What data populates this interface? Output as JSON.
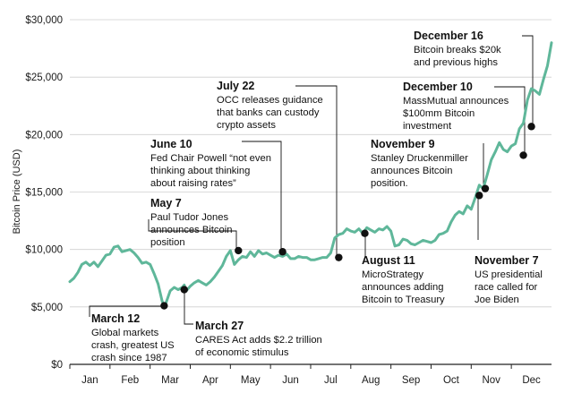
{
  "chart_data": {
    "type": "line",
    "title": "",
    "xlabel": "",
    "ylabel": "Bitcoin Price (USD)",
    "ylim": [
      0,
      30000
    ],
    "yticks": [
      "$0",
      "$5,000",
      "$10,000",
      "$15,000",
      "$20,000",
      "$25,000",
      "$30,000"
    ],
    "ytick_values": [
      0,
      5000,
      10000,
      15000,
      20000,
      25000,
      30000
    ],
    "xticks": [
      "Jan",
      "Feb",
      "Mar",
      "Apr",
      "May",
      "Jun",
      "Jul",
      "Aug",
      "Sep",
      "Oct",
      "Nov",
      "Dec"
    ],
    "grid": "horizontal",
    "line_color": "#5fb79a",
    "series": [
      {
        "values_x_month": [
          0.0,
          0.1,
          0.2,
          0.3,
          0.4,
          0.5,
          0.6,
          0.7,
          0.8,
          0.9,
          1.0,
          1.1,
          1.2,
          1.3,
          1.4,
          1.5,
          1.6,
          1.7,
          1.8,
          1.9,
          2.0,
          2.1,
          2.2,
          2.3,
          2.35,
          2.4,
          2.5,
          2.6,
          2.7,
          2.8,
          2.85,
          2.9,
          3.0,
          3.1,
          3.2,
          3.3,
          3.4,
          3.5,
          3.6,
          3.7,
          3.8,
          3.9,
          4.0,
          4.1,
          4.2,
          4.3,
          4.4,
          4.5,
          4.6,
          4.7,
          4.8,
          4.9,
          5.0,
          5.1,
          5.2,
          5.3,
          5.4,
          5.5,
          5.6,
          5.7,
          5.8,
          5.9,
          6.0,
          6.1,
          6.2,
          6.3,
          6.4,
          6.5,
          6.6,
          6.7,
          6.8,
          6.9,
          7.0,
          7.1,
          7.2,
          7.3,
          7.4,
          7.5,
          7.6,
          7.7,
          7.8,
          7.9,
          8.0,
          8.1,
          8.2,
          8.3,
          8.4,
          8.5,
          8.6,
          8.7,
          8.8,
          8.9,
          9.0,
          9.1,
          9.2,
          9.3,
          9.4,
          9.5,
          9.6,
          9.7,
          9.8,
          9.9,
          10.0,
          10.1,
          10.2,
          10.3,
          10.4,
          10.5,
          10.6,
          10.7,
          10.8,
          10.9,
          11.0,
          11.1,
          11.2,
          11.3,
          11.4,
          11.5,
          11.6,
          11.7,
          11.8,
          11.9,
          12.0
        ],
        "values_y": [
          7200,
          7500,
          8000,
          8700,
          8900,
          8600,
          8900,
          8500,
          9000,
          9500,
          9600,
          10200,
          10300,
          9800,
          9900,
          10000,
          9700,
          9300,
          8800,
          8900,
          8700,
          7900,
          7000,
          5500,
          5100,
          5400,
          6400,
          6700,
          6500,
          6700,
          6900,
          6400,
          6800,
          7100,
          7300,
          7100,
          6900,
          7200,
          7600,
          8100,
          8600,
          9400,
          9900,
          8700,
          9100,
          9400,
          9300,
          9800,
          9400,
          9900,
          9600,
          9700,
          9500,
          9300,
          9500,
          9400,
          9600,
          9200,
          9200,
          9400,
          9300,
          9300,
          9100,
          9100,
          9200,
          9300,
          9300,
          9700,
          11000,
          11300,
          11400,
          11800,
          11600,
          11500,
          11800,
          11400,
          11900,
          11700,
          11500,
          11800,
          11700,
          12000,
          11600,
          10300,
          10400,
          10900,
          10800,
          10500,
          10400,
          10600,
          10800,
          10700,
          10600,
          10800,
          11300,
          11400,
          11600,
          12400,
          13000,
          13300,
          13100,
          13800,
          13500,
          14500,
          15600,
          15300,
          16500,
          17800,
          18500,
          19300,
          18700,
          18500,
          19000,
          19200,
          20500,
          21000,
          23000,
          24000,
          23800,
          23500,
          24800,
          26000,
          28000
        ]
      }
    ],
    "annotations": [
      {
        "title": "March 12",
        "lines": [
          "Global markets",
          "crash, greatest US",
          "crash since 1987"
        ],
        "x_month": 2.35,
        "y": 5100
      },
      {
        "title": "March 27",
        "lines": [
          "CARES Act adds $2.2 trillion",
          "of economic stimulus"
        ],
        "x_month": 2.85,
        "y": 6500
      },
      {
        "title": "May 7",
        "lines": [
          "Paul Tudor Jones",
          "announces Bitcoin",
          "position"
        ],
        "x_month": 4.2,
        "y": 9900
      },
      {
        "title": "June 10",
        "lines": [
          "Fed Chair Powell “not even",
          "thinking about thinking",
          "about raising rates”"
        ],
        "x_month": 5.3,
        "y": 9800
      },
      {
        "title": "July 22",
        "lines": [
          "OCC releases guidance",
          "that banks can custody",
          "crypto assets"
        ],
        "x_month": 6.7,
        "y": 9300
      },
      {
        "title": "August 11",
        "lines": [
          "MicroStrategy",
          "announces adding",
          "Bitcoin to Treasury"
        ],
        "x_month": 7.35,
        "y": 11400
      },
      {
        "title": "November 7",
        "lines": [
          "US presidential",
          "race called for",
          "Joe Biden"
        ],
        "x_month": 10.2,
        "y": 14700
      },
      {
        "title": "November 9",
        "lines": [
          "Stanley Druckenmiller",
          "announces Bitcoin",
          "position."
        ],
        "x_month": 10.35,
        "y": 15300
      },
      {
        "title": "December 10",
        "lines": [
          "MassMutual announces",
          "$100mm Bitcoin",
          "investment"
        ],
        "x_month": 11.3,
        "y": 18200
      },
      {
        "title": "December 16",
        "lines": [
          "Bitcoin breaks $20k",
          "and previous highs"
        ],
        "x_month": 11.5,
        "y": 20700
      }
    ]
  }
}
